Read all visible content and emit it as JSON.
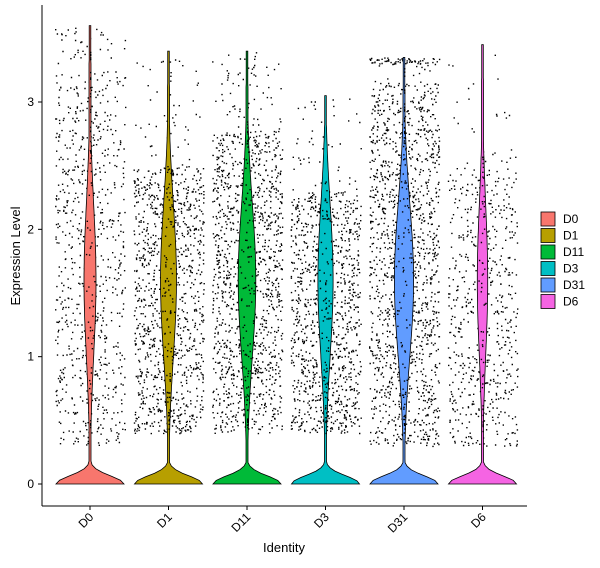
{
  "chart_data": {
    "type": "violin",
    "title": "",
    "xlabel": "Identity",
    "ylabel": "Expression Level",
    "ylim": [
      -0.2,
      3.7
    ],
    "yticks": [
      0,
      1,
      2,
      3
    ],
    "categories": [
      "D0",
      "D1",
      "D11",
      "D3",
      "D31",
      "D6"
    ],
    "colors": {
      "D0": "#F8766D",
      "D1": "#B79F00",
      "D11": "#00BA38",
      "D3": "#00BFC4",
      "D31": "#619CFF",
      "D6": "#F564E3"
    },
    "series": [
      {
        "name": "D0",
        "max": 3.6,
        "point_density": 0.55,
        "points_low": 0.3,
        "points_high": 3.4
      },
      {
        "name": "D1",
        "max": 3.4,
        "point_density": 0.8,
        "points_low": 0.4,
        "points_high": 2.6
      },
      {
        "name": "D11",
        "max": 3.4,
        "point_density": 0.9,
        "points_low": 0.4,
        "points_high": 2.9
      },
      {
        "name": "D3",
        "max": 3.05,
        "point_density": 0.75,
        "points_low": 0.4,
        "points_high": 2.4
      },
      {
        "name": "D31",
        "max": 3.35,
        "point_density": 1.0,
        "points_low": 0.3,
        "points_high": 3.3
      },
      {
        "name": "D6",
        "max": 3.45,
        "point_density": 0.45,
        "points_low": 0.3,
        "points_high": 2.6
      }
    ],
    "legend": {
      "position": "right",
      "title": ""
    },
    "grid": false
  }
}
